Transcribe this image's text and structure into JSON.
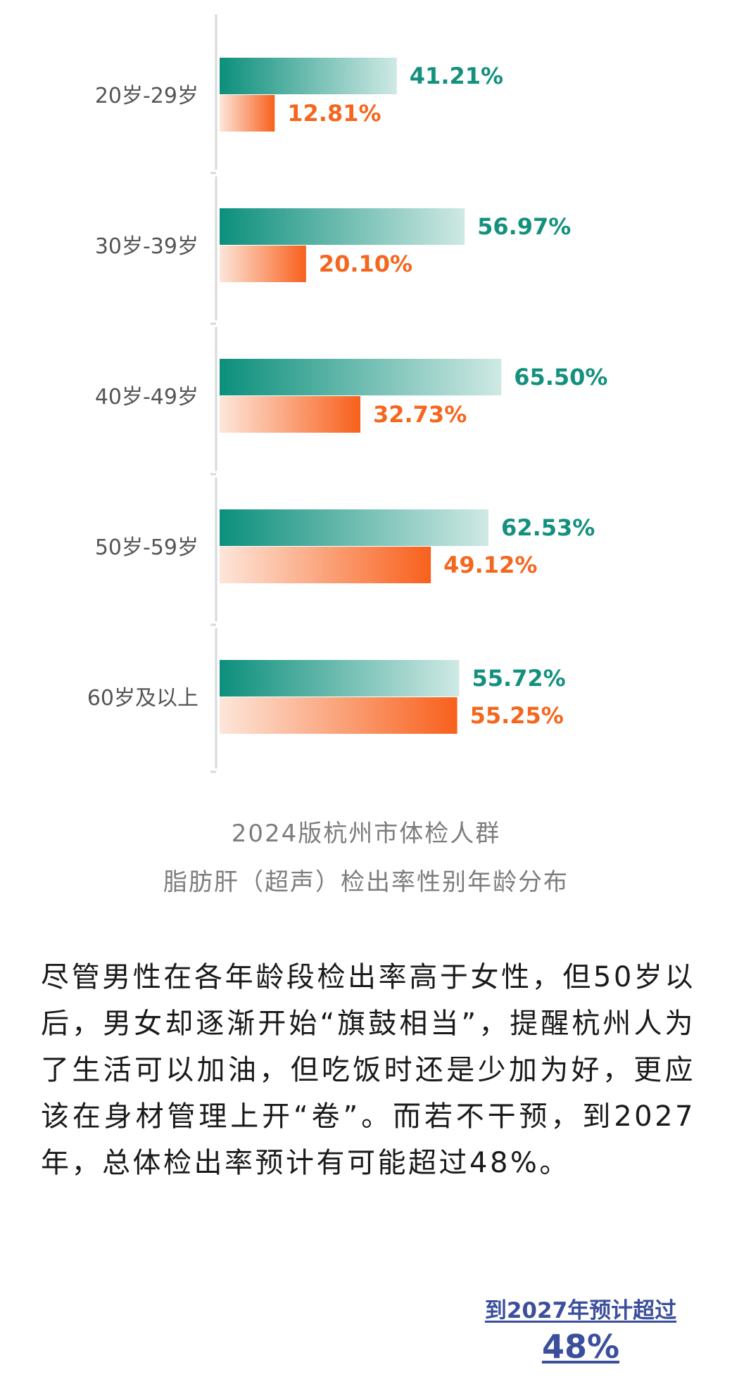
{
  "chart_data": {
    "type": "bar",
    "orientation": "horizontal",
    "categories": [
      "20岁-29岁",
      "30岁-39岁",
      "40岁-49岁",
      "50岁-59岁",
      "60岁及以上"
    ],
    "series": [
      {
        "values": [
          41.21,
          56.97,
          65.5,
          62.53,
          55.72
        ],
        "labels": [
          "41.21%",
          "56.97%",
          "65.50%",
          "62.53%",
          "55.72%"
        ]
      },
      {
        "values": [
          12.81,
          20.1,
          32.73,
          49.12,
          55.25
        ],
        "labels": [
          "12.81%",
          "20.10%",
          "32.73%",
          "49.12%",
          "55.25%"
        ]
      }
    ],
    "unit": "%",
    "xlim": [
      0,
      100
    ],
    "grid": false,
    "legend": "none",
    "colors": {
      "series1_dark": "#0c8f7c",
      "series1_light": "#cfe9e4",
      "series1_text": "#14917e",
      "series2_dark": "#f8601c",
      "series2_light": "#fde6da",
      "series2_text": "#f5661e",
      "axis": "#d8d8d8",
      "category_text": "#555555"
    }
  },
  "caption": {
    "line1": "2024版杭州市体检人群",
    "line2": "脂肪肝（超声）检出率性别年龄分布"
  },
  "paragraph": "尽管男性在各年龄段检出率高于女性，但50岁以后，男女却逐渐开始“旗鼓相当”，提醒杭州人为了生活可以加油，但吃饭时还是少加为好，更应该在身材管理上开“卷”。而若不干预，到2027年，总体检出率预计有可能超过48%。",
  "callout": {
    "line1": "到2027年预计超过",
    "line2": "48%"
  }
}
